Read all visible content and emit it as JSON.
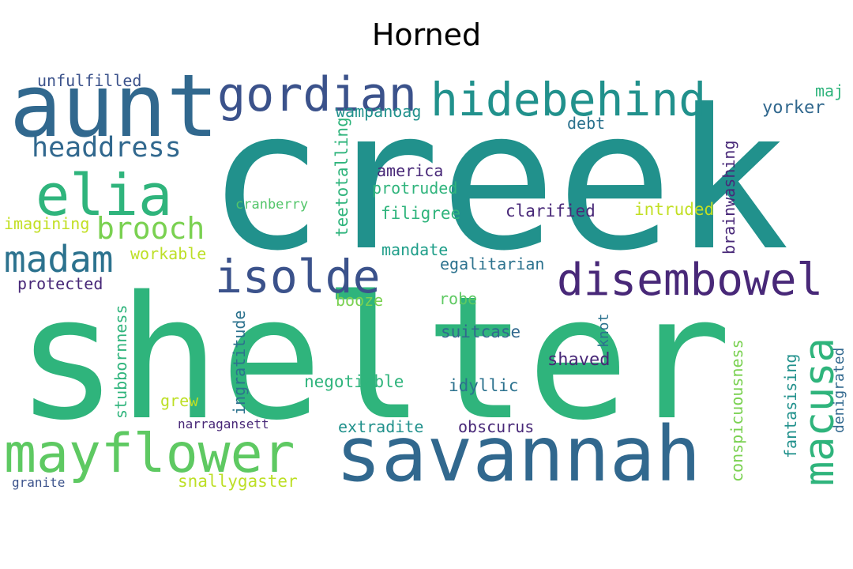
{
  "title": "Horned",
  "words": [
    {
      "text": "creek",
      "color": "#21918c"
    },
    {
      "text": "shelter",
      "color": "#2fb47c"
    },
    {
      "text": "aunt",
      "color": "#31688e"
    },
    {
      "text": "savannah",
      "color": "#31688e"
    },
    {
      "text": "mayflower",
      "color": "#5ec962"
    },
    {
      "text": "hidebehind",
      "color": "#21918c"
    },
    {
      "text": "gordian",
      "color": "#3b528b"
    },
    {
      "text": "disembowel",
      "color": "#482878"
    },
    {
      "text": "elia",
      "color": "#2fb47c"
    },
    {
      "text": "isolde",
      "color": "#3b528b"
    },
    {
      "text": "macusa",
      "color": "#2fb47c"
    },
    {
      "text": "madam",
      "color": "#2c728e"
    },
    {
      "text": "headdress",
      "color": "#31688e"
    },
    {
      "text": "brooch",
      "color": "#7ad151"
    },
    {
      "text": "unfulfilled",
      "color": "#3b528b"
    },
    {
      "text": "wampanoag",
      "color": "#21918c"
    },
    {
      "text": "yorker",
      "color": "#31688e"
    },
    {
      "text": "maj",
      "color": "#2fb47c"
    },
    {
      "text": "debt",
      "color": "#2c728e"
    },
    {
      "text": "brainwashing",
      "color": "#482878"
    },
    {
      "text": "america",
      "color": "#482878"
    },
    {
      "text": "protruded",
      "color": "#2fb47c"
    },
    {
      "text": "teetotalling",
      "color": "#2fb47c"
    },
    {
      "text": "cranberry",
      "color": "#52c569"
    },
    {
      "text": "filigree",
      "color": "#2fb47c"
    },
    {
      "text": "clarified",
      "color": "#482878"
    },
    {
      "text": "intruded",
      "color": "#c2df23"
    },
    {
      "text": "imagining",
      "color": "#c2df23"
    },
    {
      "text": "workable",
      "color": "#bddf26"
    },
    {
      "text": "mandate",
      "color": "#1f9e89"
    },
    {
      "text": "egalitarian",
      "color": "#2c728e"
    },
    {
      "text": "protected",
      "color": "#482878"
    },
    {
      "text": "booze",
      "color": "#7ad151"
    },
    {
      "text": "robe",
      "color": "#5ec962"
    },
    {
      "text": "stubbornness",
      "color": "#2fb47c"
    },
    {
      "text": "ingratitude",
      "color": "#2c728e"
    },
    {
      "text": "suitcase",
      "color": "#31688e"
    },
    {
      "text": "knot",
      "color": "#2c728e"
    },
    {
      "text": "shaved",
      "color": "#482878"
    },
    {
      "text": "conspicuousness",
      "color": "#7ad151"
    },
    {
      "text": "fantasising",
      "color": "#21918c"
    },
    {
      "text": "denigrated",
      "color": "#31688e"
    },
    {
      "text": "negotiable",
      "color": "#2fb47c"
    },
    {
      "text": "idyllic",
      "color": "#2c728e"
    },
    {
      "text": "grew",
      "color": "#bddf26"
    },
    {
      "text": "narragansett",
      "color": "#482878"
    },
    {
      "text": "extradite",
      "color": "#21918c"
    },
    {
      "text": "obscurus",
      "color": "#482878"
    },
    {
      "text": "snallygaster",
      "color": "#bddf26"
    },
    {
      "text": "granite",
      "color": "#3b528b"
    }
  ]
}
